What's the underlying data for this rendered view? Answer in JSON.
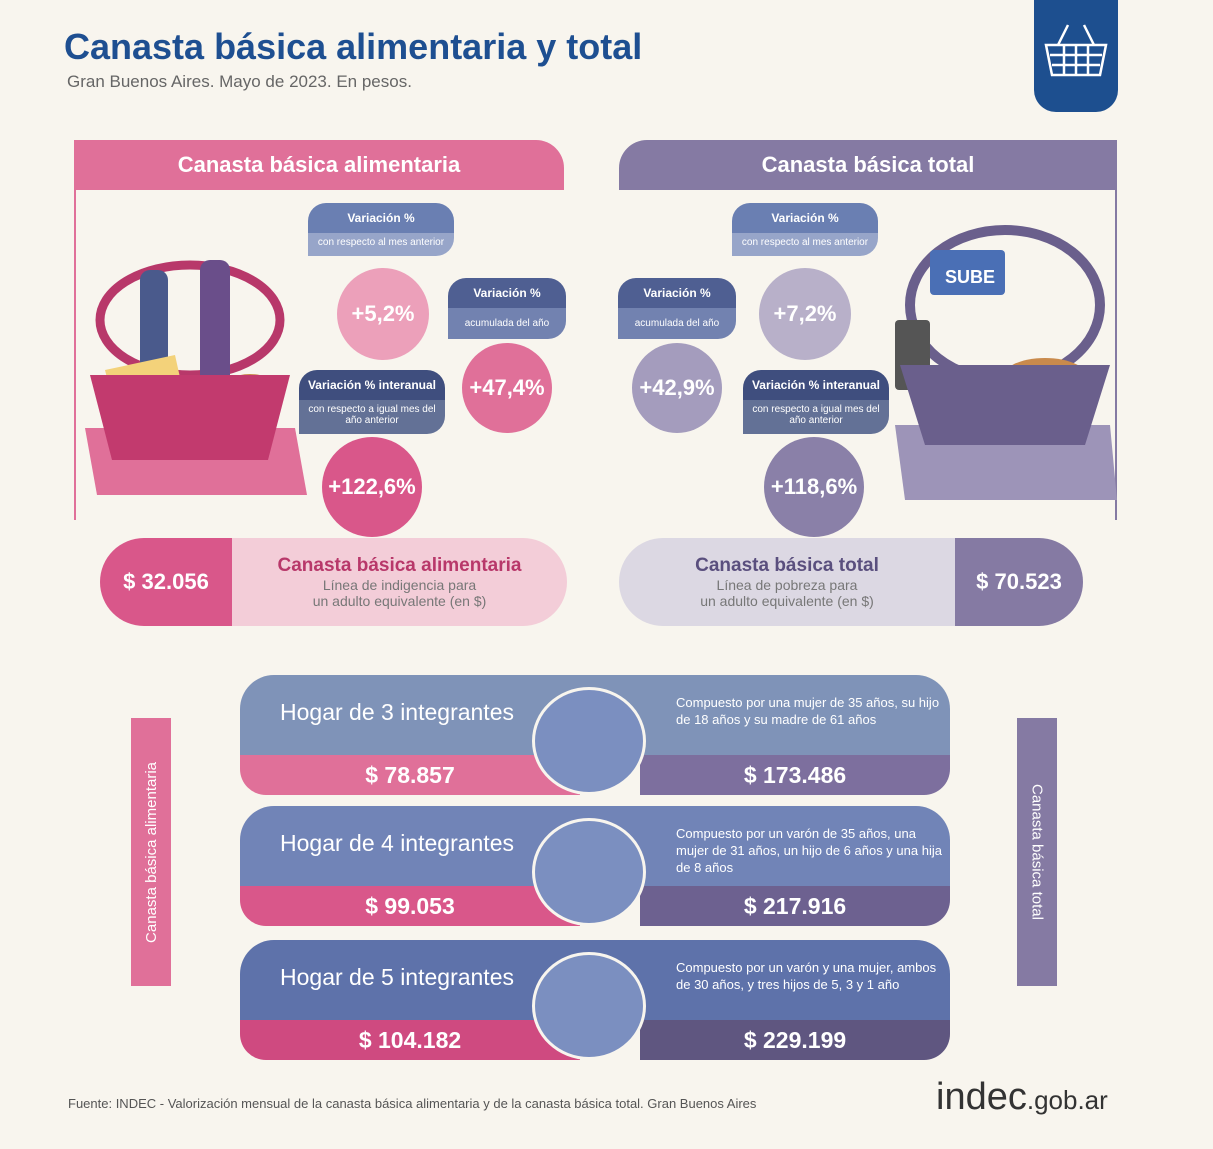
{
  "header": {
    "title": "Canasta básica alimentaria y total",
    "subtitle": "Gran Buenos Aires. Mayo de 2023. En pesos.",
    "logo_icon": "basket-icon"
  },
  "cba": {
    "header": "Canasta básica alimentaria",
    "color": "#e07099",
    "mensual": {
      "title": "Variación %",
      "sub": "con respecto al mes anterior",
      "value": "+5,2%"
    },
    "acumulada": {
      "title": "Variación %",
      "sub": "acumulada del año",
      "value": "+47,4%"
    },
    "interanual": {
      "title": "Variación % interanual",
      "sub": "con respecto a igual mes del año anterior",
      "value": "+122,6%"
    },
    "price": "$ 32.056",
    "label": "Canasta básica alimentaria",
    "desc1": "Línea de indigencia para",
    "desc2": "un adulto equivalente (en $)",
    "vertical": "Canasta básica alimentaria"
  },
  "cbt": {
    "header": "Canasta básica total",
    "color": "#857aa3",
    "mensual": {
      "title": "Variación %",
      "sub": "con respecto al mes anterior",
      "value": "+7,2%"
    },
    "acumulada": {
      "title": "Variación %",
      "sub": "acumulada del año",
      "value": "+42,9%"
    },
    "interanual": {
      "title": "Variación % interanual",
      "sub": "con respecto a igual mes del año anterior",
      "value": "+118,6%"
    },
    "price": "$ 70.523",
    "label": "Canasta básica total",
    "desc1": "Línea de pobreza para",
    "desc2": "un adulto equivalente (en $)",
    "vertical": "Canasta básica total",
    "basket_sign": "SUBE"
  },
  "hogares": [
    {
      "title": "Hogar de 3 integrantes",
      "desc": "Compuesto por una mujer de 35 años, su hijo de 18 años y su madre de 61 años",
      "cba": "$ 78.857",
      "cbt": "$ 173.486"
    },
    {
      "title": "Hogar de 4 integrantes",
      "desc": "Compuesto por un varón de 35 años, una mujer de 31 años, un hijo de 6 años y una hija de 8 años",
      "cba": "$ 99.053",
      "cbt": "$ 217.916"
    },
    {
      "title": "Hogar de 5 integrantes",
      "desc": "Compuesto por un varón y una mujer, ambos de 30 años, y tres hijos de 5, 3 y 1 año",
      "cba": "$ 104.182",
      "cbt": "$ 229.199"
    }
  ],
  "footer": {
    "source": "Fuente: INDEC - Valorización mensual de la canasta básica alimentaria y de la canasta básica total. Gran Buenos Aires",
    "brand": "indec",
    "brand_suffix": ".gob.ar"
  }
}
